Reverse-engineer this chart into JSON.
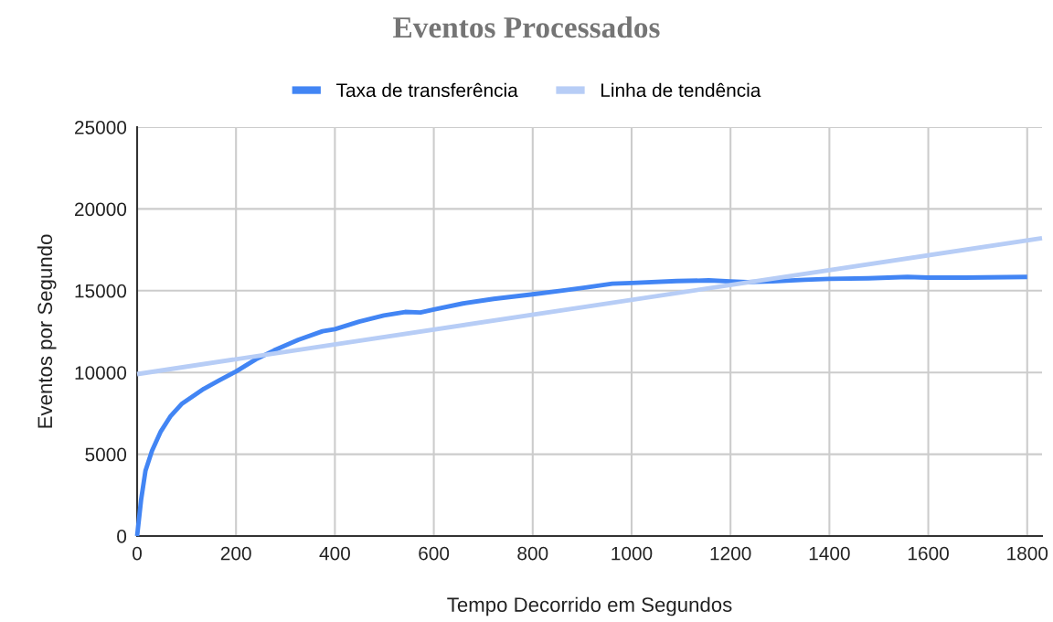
{
  "chart_data": {
    "type": "line",
    "title": "Eventos Processados",
    "xlabel": "Tempo Decorrido em Segundos",
    "ylabel": "Eventos por Segundo",
    "xlim": [
      0,
      1830
    ],
    "xticks": [
      0,
      200,
      400,
      600,
      800,
      1000,
      1200,
      1400,
      1600,
      1800
    ],
    "ylim": [
      0,
      25000
    ],
    "yticks": [
      0,
      5000,
      10000,
      15000,
      20000,
      25000
    ],
    "grid": true,
    "legend": "top",
    "line_style": "solid",
    "marker": "none",
    "series": [
      {
        "name": "Taxa de transferência",
        "color": "#4285f4",
        "x": [
          0,
          8,
          17,
          30,
          48,
          67,
          91,
          135,
          165,
          200,
          240,
          277,
          326,
          375,
          400,
          449,
          499,
          542,
          573,
          600,
          659,
          721,
          800,
          857,
          906,
          961,
          1000,
          1091,
          1156,
          1200,
          1234,
          1285,
          1350,
          1400,
          1479,
          1558,
          1600,
          1674,
          1800
        ],
        "values": [
          0,
          2200,
          4000,
          5200,
          6400,
          7300,
          8100,
          9000,
          9500,
          10060,
          10800,
          11350,
          12000,
          12520,
          12650,
          13110,
          13480,
          13700,
          13670,
          13850,
          14220,
          14500,
          14780,
          15000,
          15190,
          15430,
          15470,
          15590,
          15630,
          15570,
          15530,
          15570,
          15670,
          15720,
          15760,
          15840,
          15800,
          15800,
          15840
        ]
      },
      {
        "name": "Linha de tendência",
        "color": "#b7cdf6",
        "x": [
          0,
          1830
        ],
        "values": [
          9900,
          18210
        ]
      }
    ]
  }
}
